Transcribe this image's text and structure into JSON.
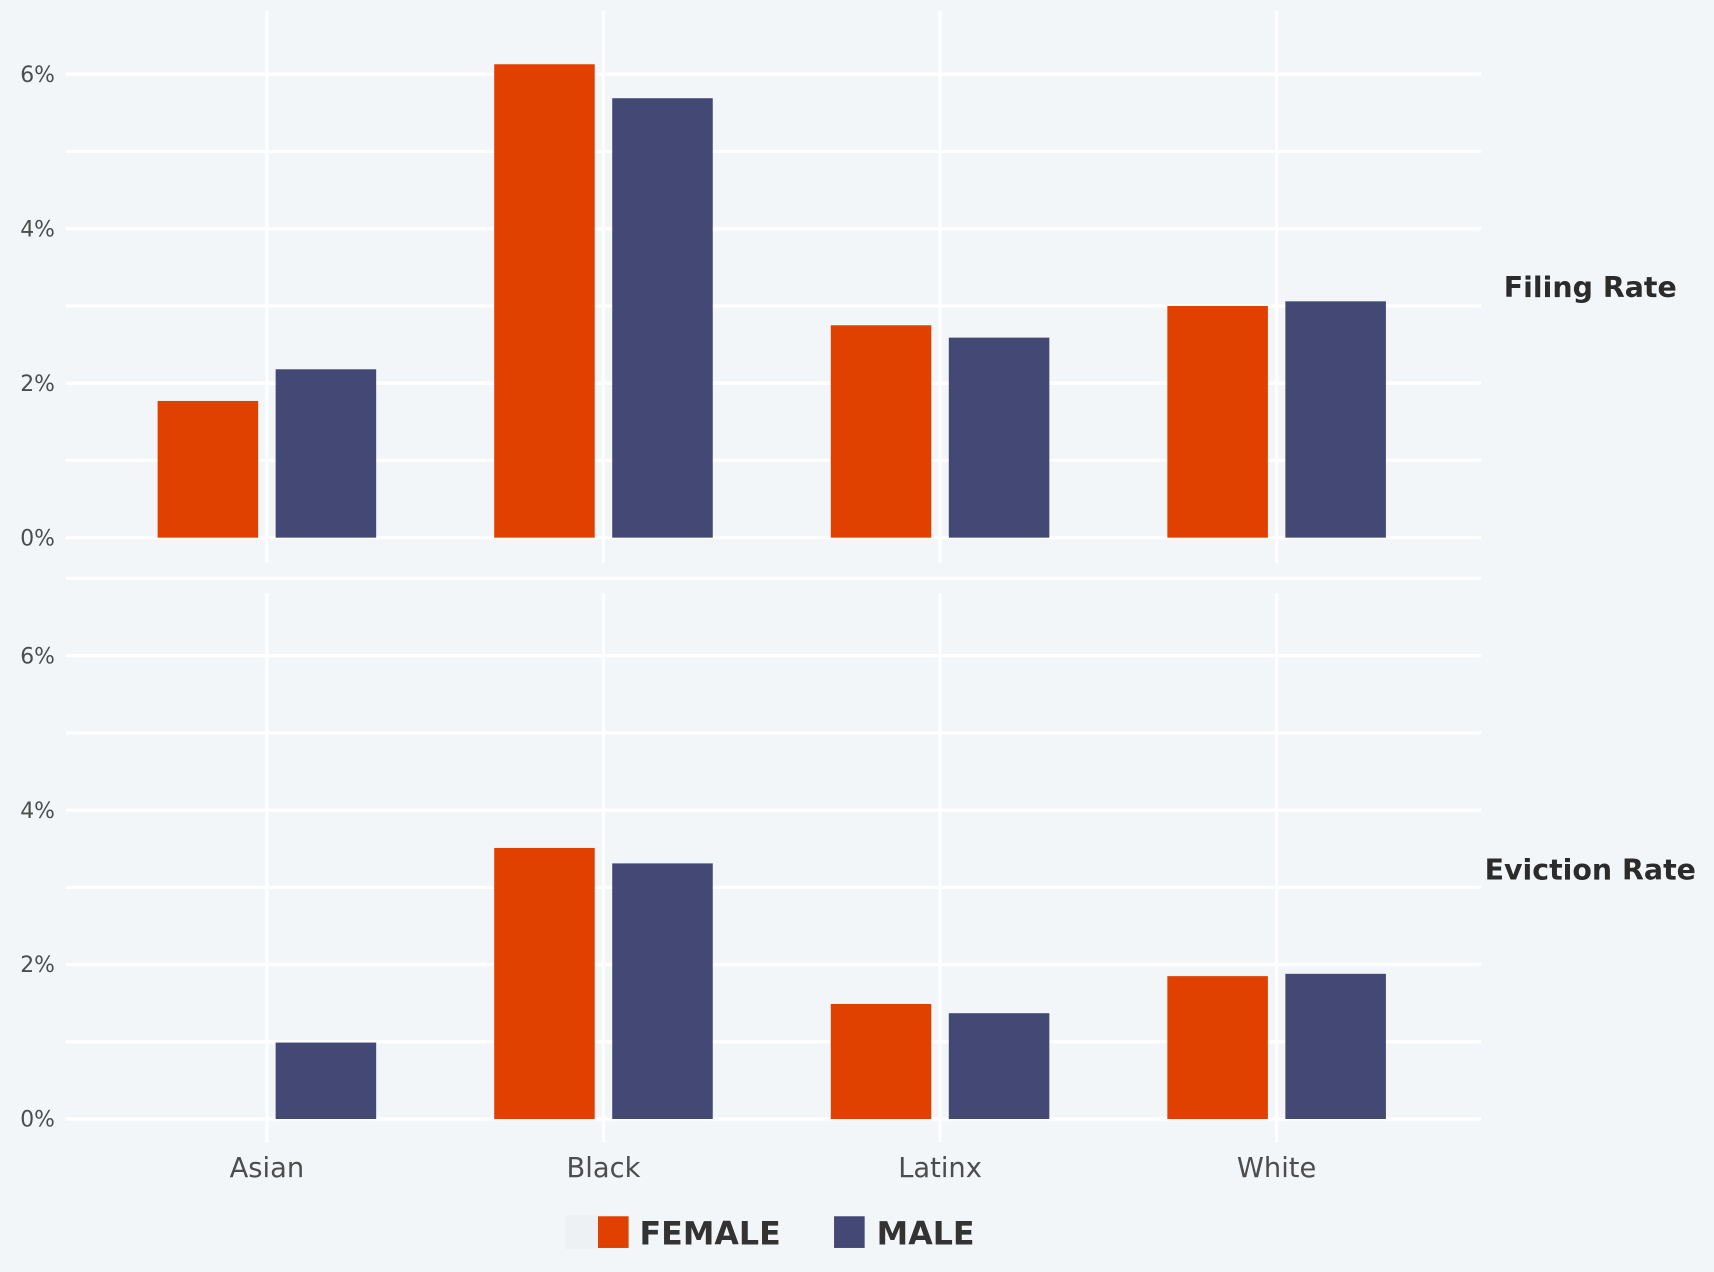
{
  "chart_data": {
    "type": "bar",
    "categories": [
      "Asian",
      "Black",
      "Latinx",
      "White"
    ],
    "ylim": [
      0,
      7
    ],
    "y_ticks": [
      "0%",
      "2%",
      "4%",
      "6%"
    ],
    "grid": true,
    "legend_position": "bottom",
    "colors": {
      "FEMALE": "#e04000",
      "MALE": "#434875"
    },
    "legend": [
      "FEMALE",
      "MALE"
    ],
    "panels": [
      {
        "title": "Filing Rate",
        "series": [
          {
            "name": "FEMALE",
            "values": [
              1.77,
              6.13,
              2.75,
              3.0
            ]
          },
          {
            "name": "MALE",
            "values": [
              2.18,
              5.69,
              2.59,
              3.06
            ]
          }
        ]
      },
      {
        "title": "Eviction Rate",
        "series": [
          {
            "name": "FEMALE",
            "values": [
              0,
              3.51,
              1.49,
              1.85
            ]
          },
          {
            "name": "MALE",
            "values": [
              0.99,
              3.31,
              1.37,
              1.88
            ]
          }
        ]
      }
    ]
  }
}
